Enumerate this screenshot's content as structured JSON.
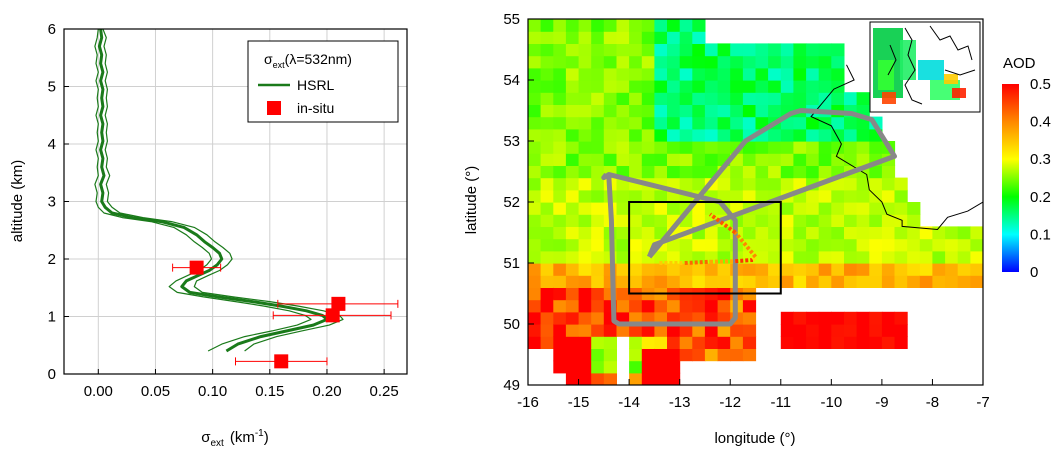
{
  "chart_data": [
    {
      "type": "line",
      "xlabel_base": "σ",
      "xlabel_sub": "ext",
      "xlabel_unit_pre": "(km",
      "xlabel_unit_sup": "-1",
      "xlabel_unit_post": ")",
      "ylabel": "altitude (km)",
      "xlim": [
        -0.03,
        0.27
      ],
      "ylim": [
        0,
        6
      ],
      "xticks": [
        "0.00",
        "0.05",
        "0.10",
        "0.15",
        "0.20",
        "0.25"
      ],
      "xtick_values": [
        0.0,
        0.05,
        0.1,
        0.15,
        0.2,
        0.25
      ],
      "yticks": [
        "0",
        "1",
        "2",
        "3",
        "4",
        "5",
        "6"
      ],
      "ytick_values": [
        0,
        1,
        2,
        3,
        4,
        5,
        6
      ],
      "grid": true,
      "legend": {
        "placement": "top-right",
        "title_base": "σ",
        "title_sub": "ext",
        "title_rest": "(λ=532nm)",
        "entries": [
          "HSRL",
          "in-situ"
        ]
      },
      "series": [
        {
          "name": "HSRL",
          "color": "#1a7a1a",
          "profiles": [
            {
              "x": [
                0.002,
                0.003,
                0.001,
                0.003,
                0.002,
                0.004,
                0.002,
                0.004,
                0.003,
                0.004,
                0.002,
                0.004,
                0.003,
                0.004,
                0.002,
                0.004,
                0.003,
                0.005,
                0.002,
                0.004,
                0.003,
                0.006,
                0.012,
                0.03,
                0.055,
                0.075,
                0.086,
                0.093,
                0.1,
                0.106,
                0.108,
                0.104,
                0.097,
                0.088,
                0.077,
                0.073,
                0.08,
                0.105,
                0.135,
                0.16,
                0.182,
                0.196,
                0.2,
                0.188,
                0.165,
                0.142,
                0.122,
                0.112
              ],
              "y": [
                6.0,
                5.85,
                5.7,
                5.55,
                5.4,
                5.25,
                5.1,
                4.95,
                4.8,
                4.65,
                4.5,
                4.35,
                4.2,
                4.05,
                3.9,
                3.75,
                3.6,
                3.45,
                3.3,
                3.15,
                3.0,
                2.9,
                2.8,
                2.72,
                2.65,
                2.55,
                2.42,
                2.3,
                2.2,
                2.1,
                2.0,
                1.9,
                1.8,
                1.72,
                1.62,
                1.52,
                1.42,
                1.34,
                1.26,
                1.18,
                1.1,
                1.02,
                0.95,
                0.85,
                0.75,
                0.65,
                0.52,
                0.4
              ]
            },
            {
              "x": [
                0.0,
                -0.001,
                -0.003,
                -0.001,
                -0.002,
                0.0,
                -0.002,
                0.0,
                -0.001,
                0.0,
                -0.002,
                0.0,
                -0.001,
                0.0,
                -0.002,
                0.0,
                -0.001,
                0.0,
                -0.003,
                -0.001,
                -0.002,
                0.0,
                0.005,
                0.021,
                0.046,
                0.066,
                0.077,
                0.084,
                0.091,
                0.097,
                0.099,
                0.095,
                0.088,
                0.079,
                0.068,
                0.062,
                0.069,
                0.092,
                0.12,
                0.145,
                0.167,
                0.181,
                0.186,
                0.174,
                0.152,
                0.128,
                0.108,
                0.096
              ],
              "y": [
                6.0,
                5.85,
                5.7,
                5.55,
                5.4,
                5.25,
                5.1,
                4.95,
                4.8,
                4.65,
                4.5,
                4.35,
                4.2,
                4.05,
                3.9,
                3.75,
                3.6,
                3.45,
                3.3,
                3.15,
                3.0,
                2.9,
                2.8,
                2.72,
                2.65,
                2.55,
                2.42,
                2.3,
                2.2,
                2.1,
                2.0,
                1.9,
                1.8,
                1.72,
                1.62,
                1.52,
                1.42,
                1.34,
                1.26,
                1.18,
                1.1,
                1.02,
                0.95,
                0.85,
                0.75,
                0.65,
                0.52,
                0.4
              ]
            },
            {
              "x": [
                0.004,
                0.007,
                0.005,
                0.007,
                0.006,
                0.008,
                0.006,
                0.008,
                0.007,
                0.008,
                0.006,
                0.008,
                0.007,
                0.008,
                0.006,
                0.008,
                0.007,
                0.01,
                0.007,
                0.009,
                0.008,
                0.012,
                0.019,
                0.039,
                0.064,
                0.084,
                0.095,
                0.102,
                0.109,
                0.115,
                0.117,
                0.113,
                0.106,
                0.097,
                0.086,
                0.084,
                0.091,
                0.118,
                0.15,
                0.175,
                0.197,
                0.211,
                0.214,
                0.202,
                0.178,
                0.156,
                0.136,
                0.128
              ],
              "y": [
                6.0,
                5.85,
                5.7,
                5.55,
                5.4,
                5.25,
                5.1,
                4.95,
                4.8,
                4.65,
                4.5,
                4.35,
                4.2,
                4.05,
                3.9,
                3.75,
                3.6,
                3.45,
                3.3,
                3.15,
                3.0,
                2.9,
                2.8,
                2.72,
                2.65,
                2.55,
                2.42,
                2.3,
                2.2,
                2.1,
                2.0,
                1.9,
                1.8,
                1.72,
                1.62,
                1.52,
                1.42,
                1.34,
                1.26,
                1.18,
                1.1,
                1.02,
                0.95,
                0.85,
                0.75,
                0.65,
                0.52,
                0.4
              ]
            }
          ]
        },
        {
          "name": "in-situ",
          "color": "#ff0000",
          "points": [
            {
              "x": 0.086,
              "y": 1.85,
              "xerr": [
                0.065,
                0.107
              ]
            },
            {
              "x": 0.21,
              "y": 1.22,
              "xerr": [
                0.157,
                0.262
              ]
            },
            {
              "x": 0.205,
              "y": 1.02,
              "xerr": [
                0.153,
                0.256
              ]
            },
            {
              "x": 0.16,
              "y": 0.22,
              "xerr": [
                0.12,
                0.2
              ]
            }
          ]
        }
      ]
    },
    {
      "type": "heatmap",
      "xlabel": "longitude (°)",
      "ylabel": "latitude (°)",
      "xlim": [
        -16,
        -7
      ],
      "ylim": [
        49,
        55
      ],
      "xticks": [
        "-16",
        "-15",
        "-14",
        "-13",
        "-12",
        "-11",
        "-10",
        "-9",
        "-8",
        "-7"
      ],
      "xtick_values": [
        -16,
        -15,
        -14,
        -13,
        -12,
        -11,
        -10,
        -9,
        -8,
        -7
      ],
      "yticks": [
        "49",
        "50",
        "51",
        "52",
        "53",
        "54",
        "55"
      ],
      "ytick_values": [
        49,
        50,
        51,
        52,
        53,
        54,
        55
      ],
      "colorbar": {
        "label": "AOD",
        "range": [
          0,
          0.5
        ],
        "ticks": [
          "0",
          "0.1",
          "0.2",
          "0.3",
          "0.4",
          "0.5"
        ],
        "tick_values": [
          0,
          0.1,
          0.2,
          0.3,
          0.4,
          0.5
        ],
        "colors": [
          "#0000ff",
          "#00ffff",
          "#00ff00",
          "#ffff00",
          "#ff8800",
          "#ff0000"
        ]
      },
      "box": {
        "lon": [
          -14,
          -11
        ],
        "lat": [
          50.5,
          52
        ]
      },
      "flight_track": {
        "color": "#888888",
        "lon": [
          -14.45,
          -14.4,
          -14.35,
          -14.3,
          -14.2,
          -12.0,
          -11.9,
          -11.9,
          -12.2,
          -14.4,
          -14.5,
          -14.45
        ],
        "lat": [
          52.45,
          52.4,
          51.7,
          50.05,
          50.0,
          50.0,
          50.1,
          51.7,
          52.0,
          52.45,
          52.4,
          52.45
        ]
      },
      "flight_track_east": {
        "lon": [
          -13.6,
          -11.7,
          -10.8,
          -10.6,
          -9.6,
          -9.2,
          -8.75,
          -13.5,
          -13.6
        ],
        "lat": [
          51.1,
          53.0,
          53.45,
          53.5,
          53.45,
          53.35,
          52.75,
          51.3,
          51.1
        ]
      },
      "insitu_track": {
        "lon": [
          -13.4,
          -12.9,
          -12.4,
          -11.9,
          -11.55,
          -11.5,
          -11.9,
          -12.4
        ],
        "lat": [
          51.0,
          51.0,
          51.02,
          51.03,
          51.05,
          51.1,
          51.5,
          51.8
        ]
      },
      "coast": {
        "lon": [
          -9.7,
          -9.55,
          -9.95,
          -10.4,
          -10.0,
          -9.8,
          -9.9,
          -9.3,
          -9.25,
          -9.0,
          -8.9,
          -8.6,
          -8.6,
          -7.9,
          -7.7,
          -7.3,
          -7.0
        ],
        "lat": [
          54.25,
          54.0,
          53.85,
          53.4,
          53.25,
          52.95,
          52.75,
          52.45,
          52.2,
          52.0,
          51.8,
          51.7,
          51.6,
          51.55,
          51.75,
          51.85,
          52.0
        ]
      },
      "field_seed": 7
    }
  ]
}
